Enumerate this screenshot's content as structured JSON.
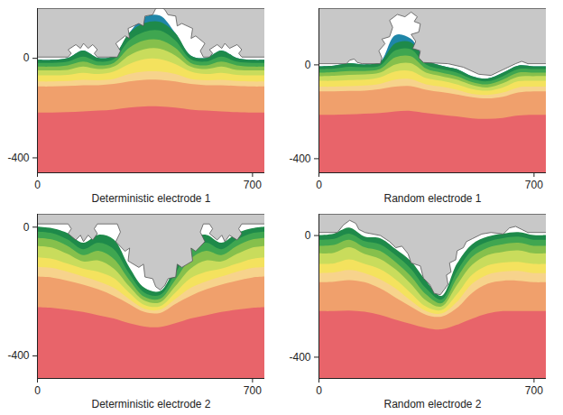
{
  "chart_data": [
    {
      "type": "contour",
      "title": "Deterministic electrode 1",
      "xlim": [
        0,
        740
      ],
      "ylim": [
        -460,
        200
      ],
      "xticks": [
        0,
        700
      ],
      "yticks": [
        0,
        -400
      ],
      "x": [
        0,
        50,
        100,
        150,
        200,
        250,
        300,
        350,
        400,
        450,
        500,
        550,
        600,
        650,
        700,
        740
      ],
      "bands": [
        {
          "color": "#1f86a8",
          "values": [
            -8,
            -8,
            0,
            30,
            0,
            10,
            100,
            165,
            170,
            100,
            10,
            0,
            30,
            0,
            -8,
            -8
          ]
        },
        {
          "color": "#1e8a4a",
          "values": [
            -8,
            -8,
            0,
            30,
            0,
            10,
            100,
            140,
            145,
            100,
            10,
            0,
            30,
            0,
            -8,
            -8
          ]
        },
        {
          "color": "#3fa650",
          "values": [
            -20,
            -20,
            -15,
            5,
            -15,
            -5,
            70,
            105,
            110,
            70,
            -5,
            -15,
            5,
            -15,
            -20,
            -20
          ]
        },
        {
          "color": "#86c04c",
          "values": [
            -35,
            -35,
            -30,
            -15,
            -30,
            -20,
            40,
            70,
            72,
            40,
            -20,
            -30,
            -15,
            -30,
            -35,
            -35
          ]
        },
        {
          "color": "#c9dc5c",
          "values": [
            -50,
            -50,
            -48,
            -35,
            -45,
            -35,
            10,
            35,
            37,
            10,
            -35,
            -45,
            -35,
            -48,
            -50,
            -50
          ]
        },
        {
          "color": "#f4e25e",
          "values": [
            -70,
            -70,
            -68,
            -60,
            -65,
            -55,
            -25,
            -5,
            -5,
            -25,
            -55,
            -65,
            -60,
            -68,
            -70,
            -70
          ]
        },
        {
          "color": "#f7d38c",
          "values": [
            -95,
            -95,
            -93,
            -88,
            -90,
            -85,
            -65,
            -55,
            -55,
            -65,
            -85,
            -90,
            -88,
            -93,
            -95,
            -95
          ]
        },
        {
          "color": "#f0a06c",
          "values": [
            -115,
            -115,
            -113,
            -110,
            -110,
            -105,
            -95,
            -88,
            -88,
            -95,
            -105,
            -110,
            -110,
            -113,
            -115,
            -115
          ]
        },
        {
          "color": "#e8646a",
          "values": [
            -220,
            -220,
            -218,
            -215,
            -212,
            -208,
            -200,
            -195,
            -195,
            -200,
            -208,
            -212,
            -215,
            -218,
            -220,
            -220
          ]
        }
      ],
      "electrode": {
        "color": "#c8c8c8",
        "x": [
          0,
          100,
          110,
          100,
          125,
          140,
          150,
          165,
          180,
          195,
          185,
          195,
          260,
          270,
          255,
          285,
          300,
          295,
          330,
          345,
          350,
          375,
          385,
          400,
          415,
          425,
          450,
          455,
          470,
          505,
          500,
          515,
          545,
          530,
          540,
          560,
          570,
          560,
          585,
          600,
          610,
          625,
          650,
          665,
          655,
          665,
          740
        ],
        "y": [
          5,
          5,
          20,
          35,
          55,
          40,
          60,
          40,
          55,
          35,
          20,
          5,
          5,
          30,
          60,
          90,
          80,
          120,
          140,
          130,
          170,
          175,
          200,
          210,
          195,
          175,
          170,
          130,
          140,
          120,
          80,
          90,
          60,
          30,
          5,
          5,
          20,
          35,
          55,
          40,
          60,
          40,
          55,
          35,
          20,
          5,
          5
        ]
      }
    },
    {
      "type": "contour",
      "title": "Random electrode 1",
      "xlim": [
        0,
        740
      ],
      "ylim": [
        -460,
        240
      ],
      "xticks": [
        0,
        700
      ],
      "yticks": [
        0,
        -400
      ],
      "x": [
        0,
        50,
        100,
        150,
        200,
        250,
        300,
        350,
        400,
        450,
        500,
        550,
        600,
        650,
        700,
        740
      ],
      "bands": [
        {
          "color": "#1f86a8",
          "values": [
            -8,
            -5,
            5,
            0,
            10,
            125,
            110,
            20,
            -5,
            -20,
            -50,
            -60,
            -35,
            -5,
            -8,
            -8
          ]
        },
        {
          "color": "#1e8a4a",
          "values": [
            -8,
            -5,
            5,
            0,
            10,
            90,
            95,
            20,
            -5,
            -20,
            -50,
            -60,
            -35,
            -5,
            -8,
            -8
          ]
        },
        {
          "color": "#3fa650",
          "values": [
            -20,
            -18,
            -10,
            -12,
            -5,
            60,
            65,
            0,
            -20,
            -35,
            -62,
            -72,
            -50,
            -20,
            -20,
            -20
          ]
        },
        {
          "color": "#86c04c",
          "values": [
            -35,
            -33,
            -28,
            -28,
            -20,
            30,
            35,
            -18,
            -35,
            -50,
            -75,
            -85,
            -65,
            -35,
            -35,
            -35
          ]
        },
        {
          "color": "#c9dc5c",
          "values": [
            -50,
            -48,
            -45,
            -43,
            -35,
            0,
            5,
            -35,
            -50,
            -65,
            -88,
            -98,
            -80,
            -52,
            -50,
            -50
          ]
        },
        {
          "color": "#f4e25e",
          "values": [
            -70,
            -70,
            -67,
            -65,
            -55,
            -30,
            -28,
            -58,
            -70,
            -85,
            -105,
            -112,
            -98,
            -72,
            -70,
            -70
          ]
        },
        {
          "color": "#f7d38c",
          "values": [
            -95,
            -95,
            -93,
            -90,
            -83,
            -65,
            -63,
            -85,
            -95,
            -108,
            -125,
            -130,
            -120,
            -98,
            -95,
            -95
          ]
        },
        {
          "color": "#f0a06c",
          "values": [
            -115,
            -115,
            -113,
            -112,
            -105,
            -95,
            -93,
            -108,
            -118,
            -128,
            -140,
            -145,
            -138,
            -120,
            -115,
            -115
          ]
        },
        {
          "color": "#e8646a",
          "values": [
            -215,
            -215,
            -213,
            -210,
            -207,
            -200,
            -198,
            -207,
            -215,
            -222,
            -230,
            -232,
            -228,
            -218,
            -215,
            -215
          ]
        }
      ],
      "electrode": {
        "color": "#c8c8c8",
        "x": [
          0,
          90,
          100,
          115,
          125,
          140,
          200,
          205,
          195,
          215,
          205,
          230,
          240,
          230,
          255,
          280,
          300,
          320,
          310,
          330,
          325,
          300,
          315,
          305,
          330,
          325,
          340,
          420,
          470,
          520,
          560,
          600,
          640,
          660,
          680,
          740
        ],
        "y": [
          5,
          5,
          20,
          25,
          10,
          5,
          5,
          30,
          60,
          90,
          110,
          120,
          160,
          190,
          215,
          205,
          225,
          205,
          185,
          175,
          140,
          130,
          100,
          70,
          60,
          30,
          10,
          5,
          -10,
          -40,
          -45,
          -20,
          5,
          15,
          5,
          5
        ]
      }
    },
    {
      "type": "contour",
      "title": "Deterministic electrode 2",
      "xlim": [
        0,
        740
      ],
      "ylim": [
        -470,
        40
      ],
      "xticks": [
        0,
        700
      ],
      "yticks": [
        0,
        -400
      ],
      "x": [
        0,
        50,
        100,
        150,
        200,
        250,
        300,
        350,
        400,
        450,
        500,
        550,
        600,
        650,
        700,
        740
      ],
      "bands": [
        {
          "color": "#1e8a4a",
          "values": [
            0,
            -5,
            -20,
            -50,
            -25,
            -40,
            -125,
            -190,
            -200,
            -125,
            -40,
            -25,
            -50,
            -20,
            -5,
            0
          ]
        },
        {
          "color": "#3fa650",
          "values": [
            -15,
            -20,
            -40,
            -70,
            -50,
            -70,
            -145,
            -205,
            -212,
            -145,
            -70,
            -50,
            -70,
            -40,
            -20,
            -15
          ]
        },
        {
          "color": "#86c04c",
          "values": [
            -35,
            -40,
            -60,
            -88,
            -75,
            -100,
            -165,
            -218,
            -224,
            -165,
            -100,
            -75,
            -88,
            -60,
            -40,
            -35
          ]
        },
        {
          "color": "#c9dc5c",
          "values": [
            -60,
            -65,
            -85,
            -108,
            -105,
            -130,
            -185,
            -230,
            -235,
            -185,
            -130,
            -105,
            -108,
            -85,
            -65,
            -60
          ]
        },
        {
          "color": "#f4e25e",
          "values": [
            -95,
            -100,
            -115,
            -130,
            -140,
            -160,
            -205,
            -243,
            -247,
            -205,
            -160,
            -140,
            -130,
            -115,
            -100,
            -95
          ]
        },
        {
          "color": "#f7d38c",
          "values": [
            -125,
            -128,
            -140,
            -155,
            -170,
            -190,
            -225,
            -255,
            -258,
            -225,
            -190,
            -170,
            -155,
            -140,
            -128,
            -125
          ]
        },
        {
          "color": "#f0a06c",
          "values": [
            -155,
            -158,
            -168,
            -180,
            -195,
            -215,
            -240,
            -265,
            -268,
            -240,
            -215,
            -195,
            -180,
            -168,
            -158,
            -155
          ]
        },
        {
          "color": "#e8646a",
          "values": [
            -250,
            -252,
            -258,
            -265,
            -275,
            -285,
            -300,
            -310,
            -312,
            -300,
            -285,
            -275,
            -265,
            -258,
            -252,
            -250
          ]
        }
      ],
      "electrode": {
        "color": "#c8c8c8",
        "x": [
          0,
          100,
          110,
          100,
          125,
          140,
          150,
          165,
          180,
          195,
          185,
          195,
          260,
          270,
          255,
          285,
          300,
          295,
          330,
          345,
          350,
          375,
          385,
          400,
          415,
          425,
          450,
          455,
          470,
          505,
          500,
          515,
          545,
          530,
          540,
          560,
          570,
          560,
          585,
          600,
          610,
          625,
          650,
          665,
          655,
          665,
          740
        ],
        "y": [
          10,
          10,
          -5,
          -20,
          -40,
          -25,
          -45,
          -25,
          -40,
          -20,
          -5,
          10,
          10,
          -15,
          -45,
          -75,
          -65,
          -105,
          -125,
          -115,
          -155,
          -160,
          -185,
          -195,
          -180,
          -160,
          -155,
          -115,
          -125,
          -105,
          -65,
          -75,
          -45,
          -15,
          10,
          10,
          -5,
          -20,
          -40,
          -25,
          -45,
          -25,
          -40,
          -20,
          -5,
          10,
          10
        ]
      }
    },
    {
      "type": "contour",
      "title": "Random electrode 2",
      "xlim": [
        0,
        740
      ],
      "ylim": [
        -470,
        70
      ],
      "xticks": [
        0,
        700
      ],
      "yticks": [
        0,
        -400
      ],
      "x": [
        0,
        50,
        100,
        150,
        200,
        250,
        300,
        350,
        400,
        450,
        500,
        550,
        600,
        650,
        700,
        740
      ],
      "bands": [
        {
          "color": "#1e8a4a",
          "values": [
            0,
            5,
            25,
            -5,
            -10,
            -45,
            -85,
            -150,
            -200,
            -95,
            -30,
            -5,
            5,
            10,
            0,
            0
          ]
        },
        {
          "color": "#3fa650",
          "values": [
            -15,
            -12,
            5,
            -20,
            -30,
            -65,
            -110,
            -175,
            -212,
            -120,
            -50,
            -22,
            -10,
            -5,
            -15,
            -15
          ]
        },
        {
          "color": "#86c04c",
          "values": [
            -35,
            -32,
            -15,
            -40,
            -52,
            -88,
            -135,
            -195,
            -224,
            -142,
            -72,
            -42,
            -30,
            -25,
            -35,
            -35
          ]
        },
        {
          "color": "#c9dc5c",
          "values": [
            -60,
            -58,
            -40,
            -62,
            -78,
            -112,
            -160,
            -215,
            -235,
            -165,
            -98,
            -66,
            -55,
            -50,
            -60,
            -60
          ]
        },
        {
          "color": "#f4e25e",
          "values": [
            -95,
            -93,
            -80,
            -95,
            -112,
            -145,
            -190,
            -235,
            -247,
            -195,
            -130,
            -100,
            -90,
            -88,
            -95,
            -95
          ]
        },
        {
          "color": "#f7d38c",
          "values": [
            -125,
            -123,
            -115,
            -125,
            -145,
            -175,
            -215,
            -250,
            -258,
            -220,
            -160,
            -130,
            -120,
            -118,
            -125,
            -125
          ]
        },
        {
          "color": "#f0a06c",
          "values": [
            -155,
            -153,
            -148,
            -155,
            -175,
            -205,
            -235,
            -262,
            -268,
            -240,
            -190,
            -160,
            -150,
            -150,
            -155,
            -155
          ]
        },
        {
          "color": "#e8646a",
          "values": [
            -250,
            -250,
            -248,
            -252,
            -262,
            -278,
            -292,
            -305,
            -310,
            -295,
            -275,
            -258,
            -250,
            -250,
            -250,
            -250
          ]
        }
      ],
      "electrode": {
        "color": "#c8c8c8",
        "x": [
          0,
          60,
          80,
          100,
          120,
          130,
          150,
          200,
          230,
          250,
          270,
          290,
          300,
          330,
          340,
          360,
          375,
          395,
          410,
          420,
          415,
          430,
          425,
          445,
          450,
          470,
          480,
          500,
          530,
          560,
          600,
          620,
          640,
          660,
          680,
          740
        ],
        "y": [
          10,
          10,
          35,
          50,
          40,
          20,
          10,
          0,
          -20,
          -40,
          -35,
          -60,
          -90,
          -100,
          -140,
          -160,
          -190,
          -195,
          -175,
          -160,
          -130,
          -120,
          -90,
          -80,
          -50,
          -40,
          -20,
          -10,
          5,
          10,
          5,
          25,
          30,
          20,
          10,
          10
        ]
      }
    }
  ]
}
